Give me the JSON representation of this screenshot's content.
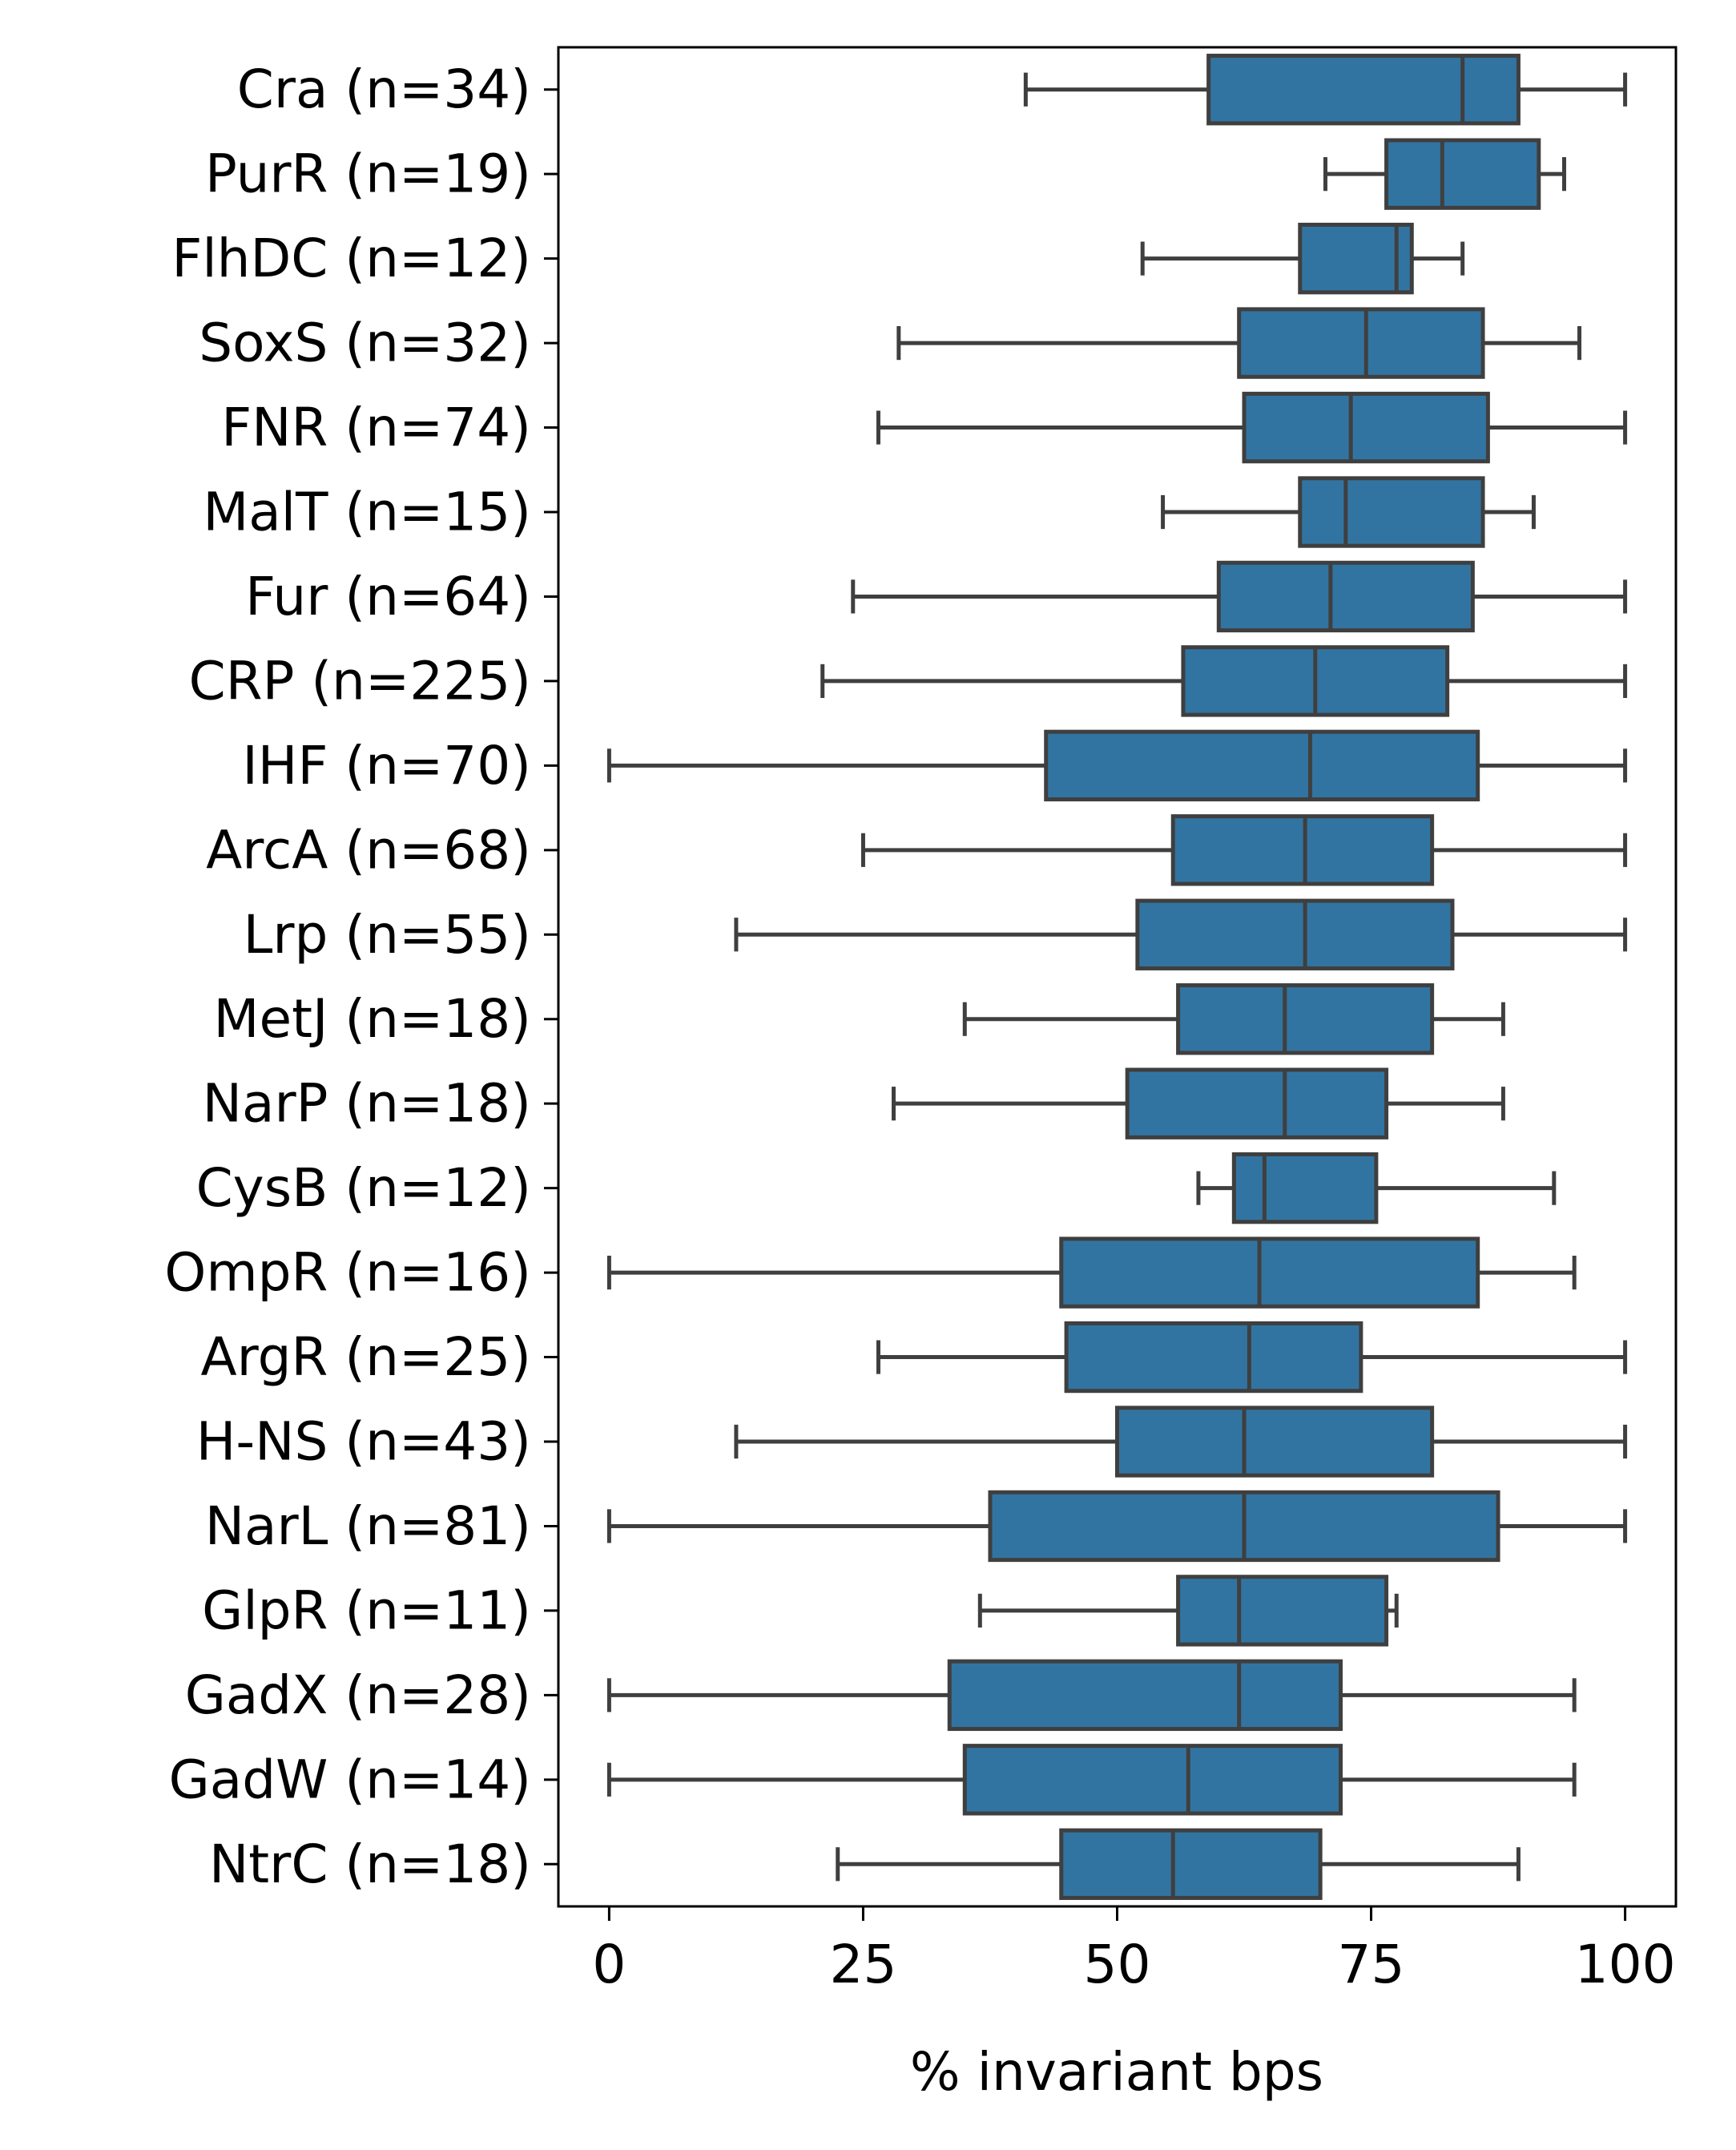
{
  "chart_data": {
    "type": "boxplot",
    "orientation": "horizontal",
    "xlabel": "% invariant bps",
    "xlim": [
      -5,
      105
    ],
    "xticks": [
      0,
      25,
      50,
      75,
      100
    ],
    "grid": false,
    "box_color": "#3274a1",
    "line_color": "#3f3f3f",
    "categories": [
      "Cra (n=34)",
      "PurR (n=19)",
      "FlhDC (n=12)",
      "SoxS (n=32)",
      "FNR (n=74)",
      "MalT (n=15)",
      "Fur (n=64)",
      "CRP (n=225)",
      "IHF (n=70)",
      "ArcA (n=68)",
      "Lrp (n=55)",
      "MetJ (n=18)",
      "NarP (n=18)",
      "CysB (n=12)",
      "OmpR (n=16)",
      "ArgR (n=25)",
      "H-NS (n=43)",
      "NarL (n=81)",
      "GlpR (n=11)",
      "GadX (n=28)",
      "GadW (n=14)",
      "NtrC (n=18)"
    ],
    "boxes": [
      {
        "whislo": 41,
        "q1": 59,
        "med": 84,
        "q3": 89.5,
        "whishi": 100
      },
      {
        "whislo": 70.5,
        "q1": 76.5,
        "med": 82,
        "q3": 91.5,
        "whishi": 94
      },
      {
        "whislo": 52.5,
        "q1": 68,
        "med": 77.5,
        "q3": 79,
        "whishi": 84
      },
      {
        "whislo": 28.5,
        "q1": 62,
        "med": 74.5,
        "q3": 86,
        "whishi": 95.5
      },
      {
        "whislo": 26.5,
        "q1": 62.5,
        "med": 73,
        "q3": 86.5,
        "whishi": 100
      },
      {
        "whislo": 54.5,
        "q1": 68,
        "med": 72.5,
        "q3": 86,
        "whishi": 91
      },
      {
        "whislo": 24,
        "q1": 60,
        "med": 71,
        "q3": 85,
        "whishi": 100
      },
      {
        "whislo": 21,
        "q1": 56.5,
        "med": 69.5,
        "q3": 82.5,
        "whishi": 100
      },
      {
        "whislo": 0,
        "q1": 43,
        "med": 69,
        "q3": 85.5,
        "whishi": 100
      },
      {
        "whislo": 25,
        "q1": 55.5,
        "med": 68.5,
        "q3": 81,
        "whishi": 100
      },
      {
        "whislo": 12.5,
        "q1": 52,
        "med": 68.5,
        "q3": 83,
        "whishi": 100
      },
      {
        "whislo": 35,
        "q1": 56,
        "med": 66.5,
        "q3": 81,
        "whishi": 88
      },
      {
        "whislo": 28,
        "q1": 51,
        "med": 66.5,
        "q3": 76.5,
        "whishi": 88
      },
      {
        "whislo": 58,
        "q1": 61.5,
        "med": 64.5,
        "q3": 75.5,
        "whishi": 93
      },
      {
        "whislo": 0,
        "q1": 44.5,
        "med": 64,
        "q3": 85.5,
        "whishi": 95
      },
      {
        "whislo": 26.5,
        "q1": 45,
        "med": 63,
        "q3": 74,
        "whishi": 100
      },
      {
        "whislo": 12.5,
        "q1": 50,
        "med": 62.5,
        "q3": 81,
        "whishi": 100
      },
      {
        "whislo": 0,
        "q1": 37.5,
        "med": 62.5,
        "q3": 87.5,
        "whishi": 100
      },
      {
        "whislo": 36.5,
        "q1": 56,
        "med": 62,
        "q3": 76.5,
        "whishi": 77.5
      },
      {
        "whislo": 0,
        "q1": 33.5,
        "med": 62,
        "q3": 72,
        "whishi": 95
      },
      {
        "whislo": 0,
        "q1": 35,
        "med": 57,
        "q3": 72,
        "whishi": 95
      },
      {
        "whislo": 22.5,
        "q1": 44.5,
        "med": 55.5,
        "q3": 70,
        "whishi": 89.5
      }
    ]
  }
}
